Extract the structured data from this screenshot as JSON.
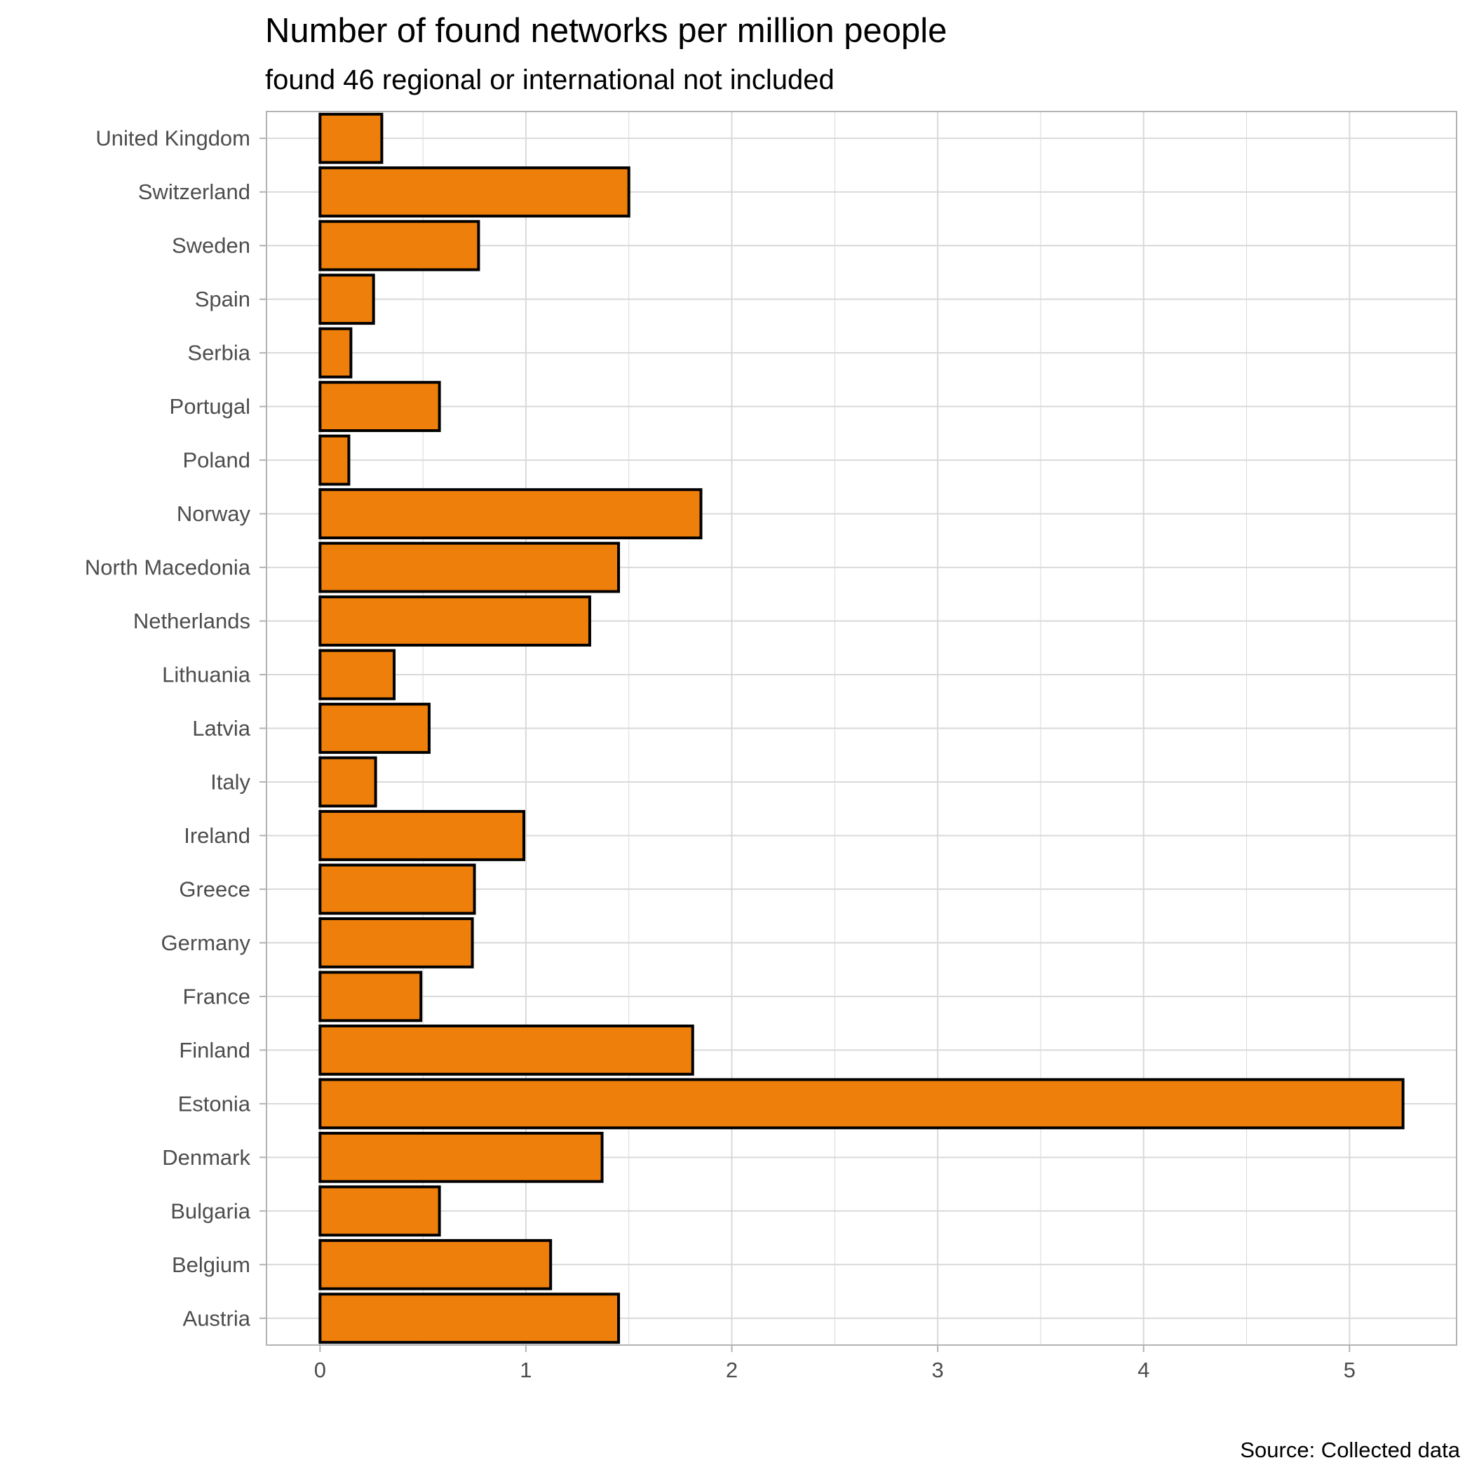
{
  "chart_data": {
    "type": "bar",
    "orientation": "horizontal",
    "title": "Number of found networks per million people",
    "subtitle": "found 46 regional or international not included",
    "caption": "Source: Collected data",
    "xlabel": "",
    "ylabel": "",
    "categories": [
      "United Kingdom",
      "Switzerland",
      "Sweden",
      "Spain",
      "Serbia",
      "Portugal",
      "Poland",
      "Norway",
      "North Macedonia",
      "Netherlands",
      "Lithuania",
      "Latvia",
      "Italy",
      "Ireland",
      "Greece",
      "Germany",
      "France",
      "Finland",
      "Estonia",
      "Denmark",
      "Bulgaria",
      "Belgium",
      "Austria"
    ],
    "values": [
      0.3,
      1.5,
      0.77,
      0.26,
      0.15,
      0.58,
      0.14,
      1.85,
      1.45,
      1.31,
      0.36,
      0.53,
      0.27,
      0.99,
      0.75,
      0.74,
      0.49,
      1.81,
      5.26,
      1.37,
      0.58,
      1.12,
      1.45
    ],
    "xlim": [
      -0.26,
      5.52
    ],
    "xticks": [
      0,
      1,
      2,
      3,
      4,
      5
    ],
    "grid": true,
    "legend": "none",
    "colors": {
      "bar_fill": "#ee7f0a",
      "bar_stroke": "#000000",
      "grid": "#d9d9d9",
      "panel_border": "#b3b3b3"
    }
  }
}
